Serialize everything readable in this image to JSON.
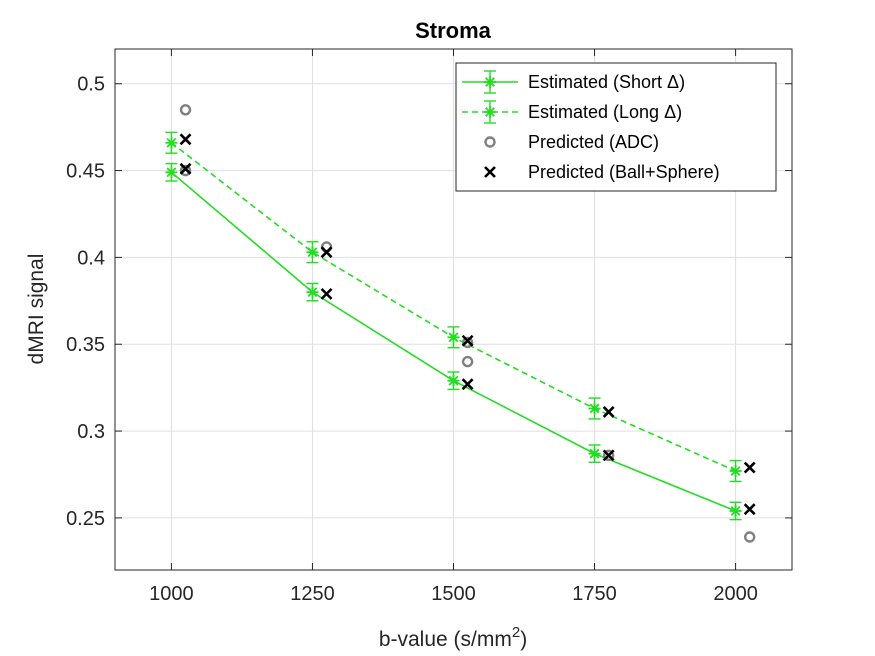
{
  "chart_data": {
    "type": "scatter",
    "title": "Stroma",
    "xlabel": "b-value (s/mm",
    "xlabel_sup": "2",
    "xlabel_suffix": ")",
    "ylabel": "dMRI signal",
    "xlim": [
      900,
      2100
    ],
    "ylim": [
      0.22,
      0.52
    ],
    "xticks": [
      1000,
      1250,
      1500,
      1750,
      2000
    ],
    "yticks": [
      0.25,
      0.3,
      0.35,
      0.4,
      0.45,
      0.5
    ],
    "ytick_labels": [
      "0.25",
      "0.3",
      "0.35",
      "0.4",
      "0.45",
      "0.5"
    ],
    "grid": true,
    "legend_position": "top-right",
    "series": [
      {
        "name": "Estimated (Short Δ)",
        "style": "solid-line-errorbar-star",
        "color": "#22dd22",
        "x": [
          1000,
          1250,
          1500,
          1750,
          2000
        ],
        "y": [
          0.449,
          0.38,
          0.329,
          0.287,
          0.254
        ],
        "err": [
          0.005,
          0.005,
          0.005,
          0.005,
          0.005
        ]
      },
      {
        "name": "Estimated (Long Δ)",
        "style": "dashed-line-errorbar-star",
        "color": "#22dd22",
        "x": [
          1000,
          1250,
          1500,
          1750,
          2000
        ],
        "y": [
          0.466,
          0.403,
          0.354,
          0.313,
          0.277
        ],
        "err": [
          0.006,
          0.006,
          0.006,
          0.006,
          0.006
        ]
      },
      {
        "name": "Predicted (ADC)",
        "style": "circle",
        "color": "#808080",
        "x": [
          1025,
          1025,
          1275,
          1525,
          1525,
          1775,
          2025
        ],
        "y": [
          0.485,
          0.45,
          0.406,
          0.351,
          0.34,
          0.286,
          0.239
        ]
      },
      {
        "name": "Predicted (Ball+Sphere)",
        "style": "x",
        "color": "#000000",
        "x": [
          1025,
          1025,
          1275,
          1275,
          1525,
          1525,
          1775,
          1775,
          2025,
          2025
        ],
        "y": [
          0.468,
          0.451,
          0.403,
          0.379,
          0.352,
          0.327,
          0.311,
          0.286,
          0.279,
          0.255
        ]
      }
    ]
  }
}
